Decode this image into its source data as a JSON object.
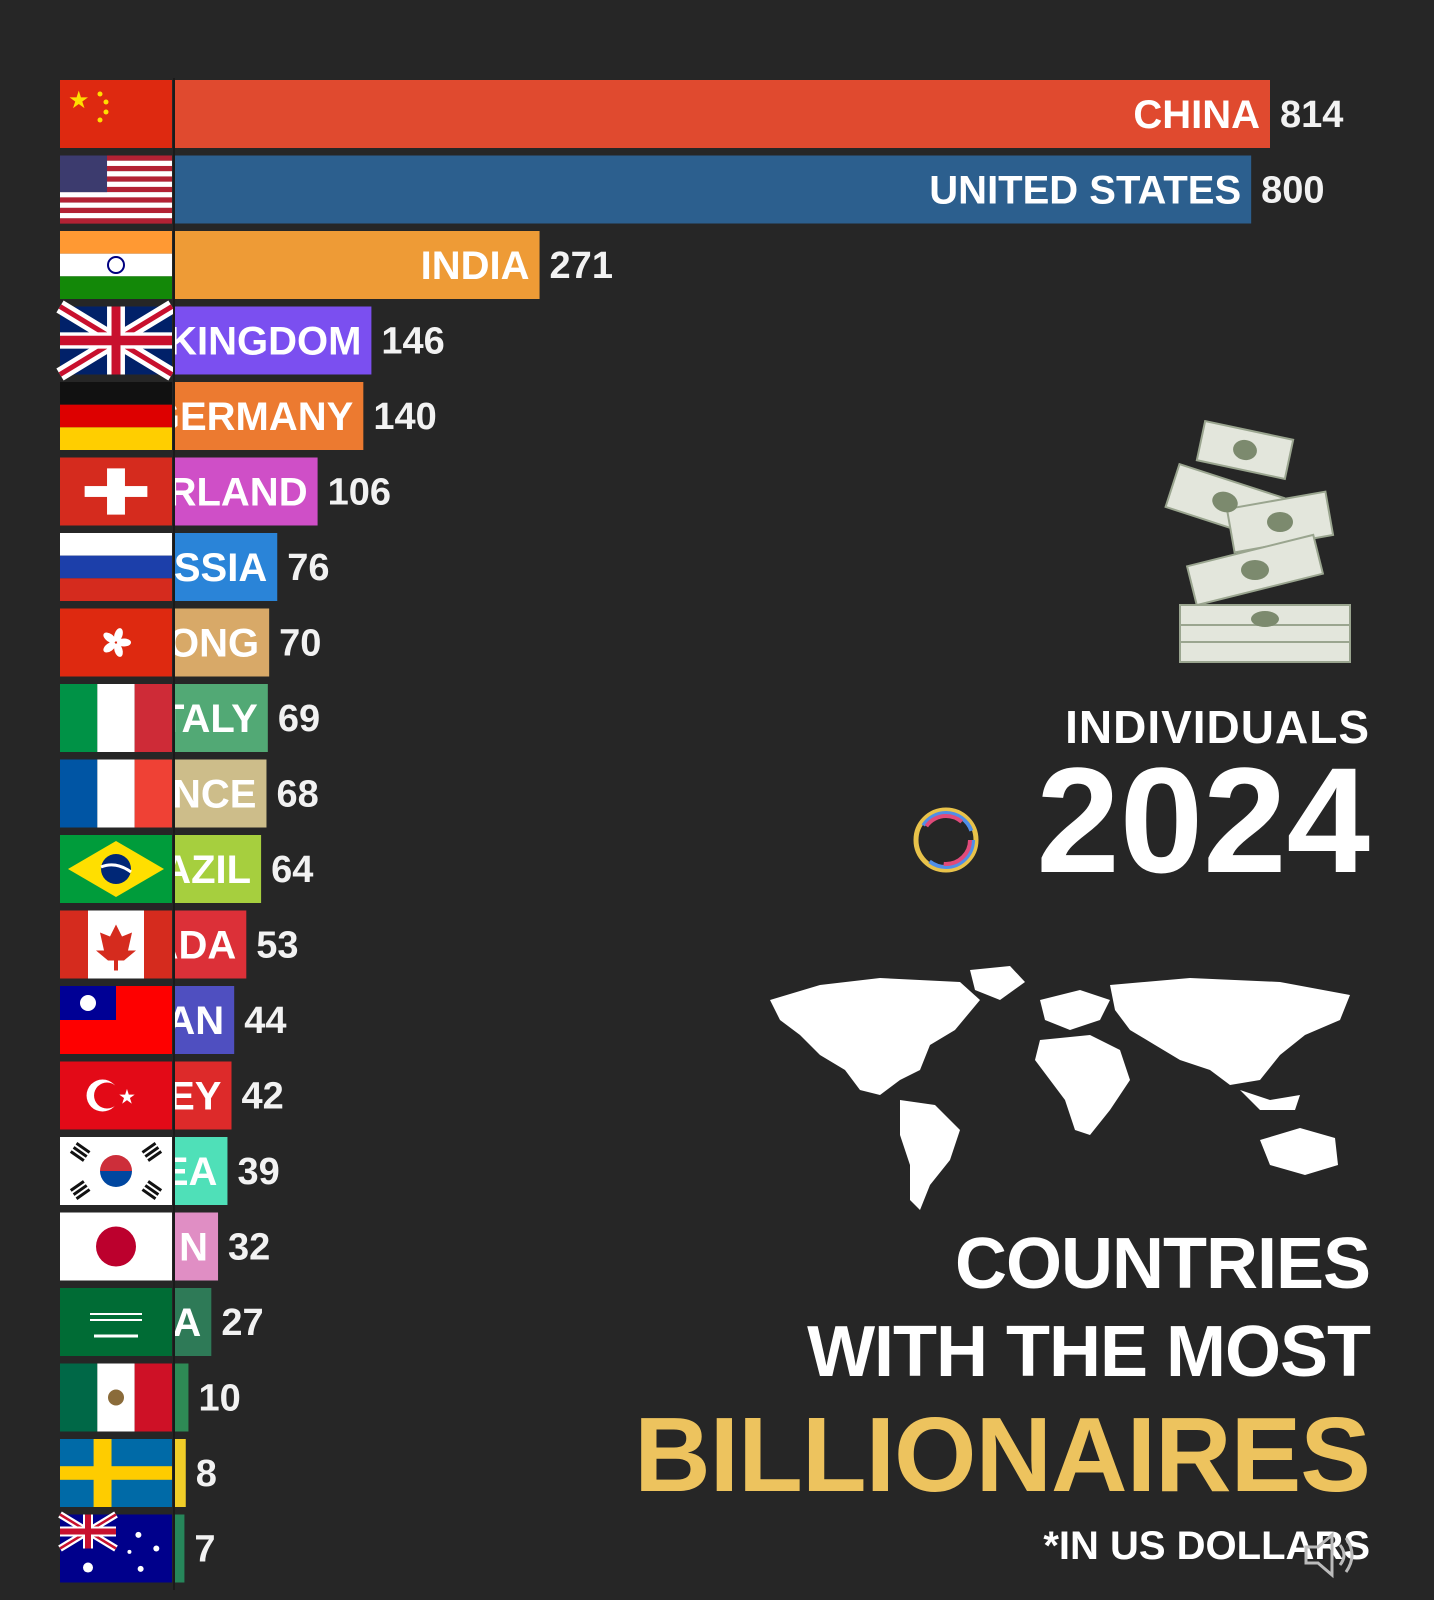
{
  "chart_data": {
    "type": "bar",
    "orientation": "horizontal",
    "sorted": "descending",
    "bar_labels_visible": [
      "CHINA",
      "UNITED STATES",
      "INDIA",
      "KINGDOM",
      "GERMANY",
      "RLAND",
      "JSSIA",
      "ONG",
      "TALY",
      "NCE",
      "AZIL",
      "ADA",
      "AN",
      "EY",
      "EA",
      "N",
      "A",
      "",
      "",
      ""
    ],
    "flags": [
      "china",
      "united-states",
      "india",
      "united-kingdom",
      "germany",
      "switzerland",
      "russia",
      "hong-kong",
      "italy",
      "france",
      "brazil",
      "canada",
      "taiwan",
      "turkey",
      "south-korea",
      "japan",
      "saudi-arabia",
      "mexico",
      "sweden",
      "australia"
    ],
    "values": [
      814,
      800,
      271,
      146,
      140,
      106,
      76,
      70,
      69,
      68,
      64,
      53,
      44,
      42,
      39,
      32,
      27,
      10,
      8,
      7
    ],
    "colors": [
      "#e04a2f",
      "#2c5f8e",
      "#ee9b36",
      "#7b4ff0",
      "#ec7a30",
      "#cf4fc7",
      "#2a84d8",
      "#d8a968",
      "#52a975",
      "#cdbd8a",
      "#a6cf3e",
      "#dc3038",
      "#4f4fc0",
      "#dd2a2a",
      "#4fe0b8",
      "#e08ec4",
      "#2e7a57",
      "#2e8a55",
      "#f0cd28",
      "#26865a"
    ],
    "grid": false,
    "legend": "none"
  },
  "panel": {
    "metric": "INDIVIDUALS",
    "year": "2024",
    "title_line1": "COUNTRIES",
    "title_line2": "WITH THE MOST",
    "title_highlight": "BILLIONAIRES",
    "footnote": "*IN US DOLLARS"
  },
  "colors": {
    "background": "#262626",
    "highlight": "#edc35e",
    "text": "#ffffff"
  },
  "icons": [
    "money-stack-icon",
    "world-map-icon",
    "loading-ring-icon",
    "speaker-icon"
  ]
}
